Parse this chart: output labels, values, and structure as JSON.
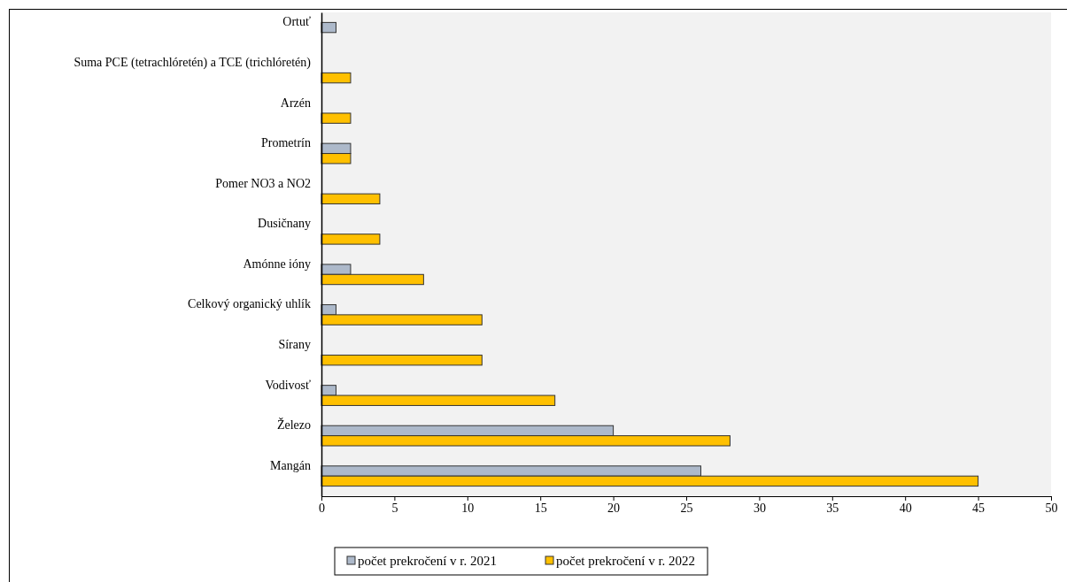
{
  "chart_data": {
    "type": "bar",
    "orientation": "horizontal",
    "categories": [
      "Ortuť",
      "Suma  PCE (tetrachlóretén)  a TCE (trichlóretén)",
      "Arzén",
      "Prometrín",
      "Pomer NO3 a NO2",
      "Dusičnany",
      "Amónne ióny",
      "Celkový organický uhlík",
      "Sírany",
      "Vodivosť",
      "Železo",
      "Mangán"
    ],
    "series": [
      {
        "name": "počet prekročení v r. 2021",
        "color": "#adb9ca",
        "values": [
          1,
          null,
          null,
          2,
          null,
          null,
          2,
          1,
          null,
          1,
          20,
          26
        ]
      },
      {
        "name": "počet prekročení v r. 2022",
        "color": "#ffc000",
        "values": [
          null,
          2,
          2,
          2,
          4,
          4,
          7,
          11,
          11,
          16,
          28,
          45
        ]
      }
    ],
    "xlim": [
      0,
      50
    ],
    "xticks": [
      0,
      5,
      10,
      15,
      20,
      25,
      30,
      35,
      40,
      45,
      50
    ],
    "grid": false,
    "legend": "bottom"
  }
}
